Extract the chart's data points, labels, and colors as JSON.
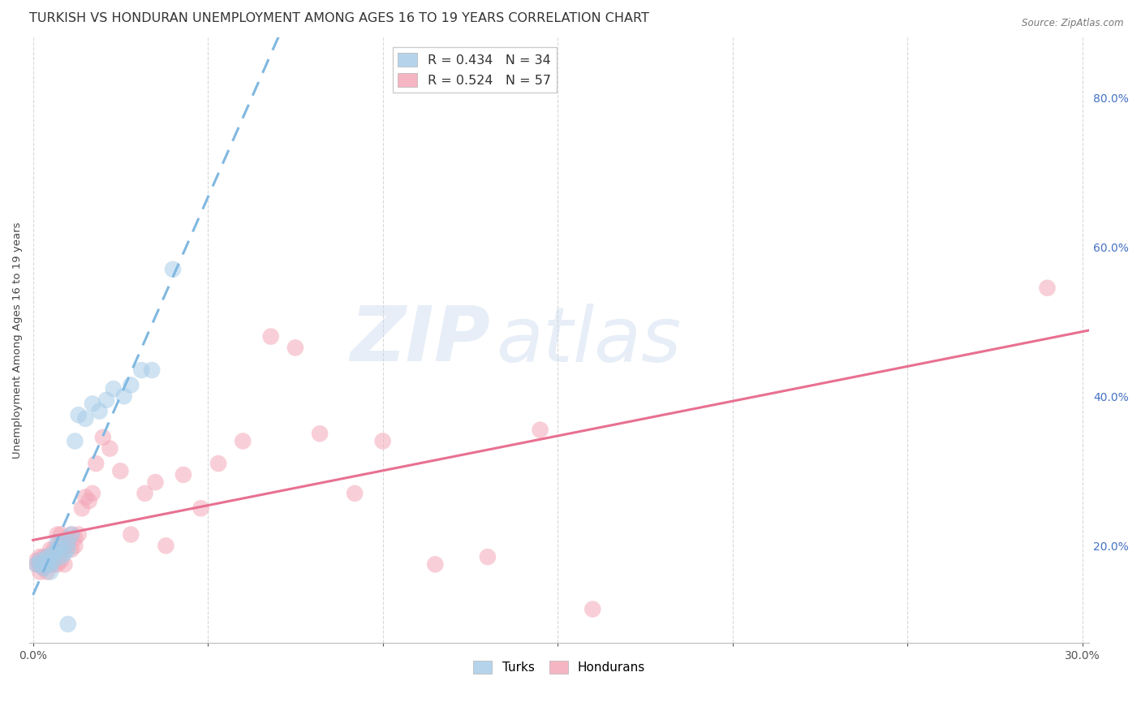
{
  "title": "TURKISH VS HONDURAN UNEMPLOYMENT AMONG AGES 16 TO 19 YEARS CORRELATION CHART",
  "source": "Source: ZipAtlas.com",
  "ylabel": "Unemployment Among Ages 16 to 19 years",
  "xlim_min": -0.001,
  "xlim_max": 0.302,
  "ylim_min": 0.07,
  "ylim_max": 0.88,
  "xticks": [
    0.0,
    0.05,
    0.1,
    0.15,
    0.2,
    0.25,
    0.3
  ],
  "xticklabels": [
    "0.0%",
    "",
    "",
    "",
    "",
    "",
    "30.0%"
  ],
  "yticks_right": [
    0.2,
    0.4,
    0.6,
    0.8
  ],
  "ytick_right_labels": [
    "20.0%",
    "40.0%",
    "60.0%",
    "80.0%"
  ],
  "legend_r1": "R = 0.434",
  "legend_n1": "N = 34",
  "legend_r2": "R = 0.524",
  "legend_n2": "N = 57",
  "turk_color": "#a8cce8",
  "honduran_color": "#f4a8b8",
  "turk_line_color": "#80b8e0",
  "honduran_line_color": "#e87090",
  "watermark_zip": "ZIP",
  "watermark_atlas": "atlas",
  "background_color": "#ffffff",
  "grid_color": "#d8d8d8",
  "title_color": "#333333",
  "right_tick_color": "#4472c4",
  "bottom_tick_color": "#555555",
  "title_fontsize": 11.5,
  "axis_label_fontsize": 9.5,
  "tick_fontsize": 10,
  "marker_size": 220,
  "marker_alpha": 0.55,
  "turks_x": [
    0.001,
    0.002,
    0.002,
    0.003,
    0.003,
    0.004,
    0.004,
    0.004,
    0.005,
    0.005,
    0.005,
    0.006,
    0.006,
    0.007,
    0.007,
    0.008,
    0.008,
    0.009,
    0.01,
    0.01,
    0.011,
    0.012,
    0.013,
    0.015,
    0.017,
    0.019,
    0.021,
    0.023,
    0.026,
    0.028,
    0.031,
    0.034,
    0.04,
    0.01
  ],
  "turks_y": [
    0.175,
    0.175,
    0.18,
    0.17,
    0.175,
    0.175,
    0.18,
    0.185,
    0.165,
    0.175,
    0.185,
    0.19,
    0.18,
    0.195,
    0.205,
    0.185,
    0.2,
    0.19,
    0.195,
    0.205,
    0.215,
    0.34,
    0.375,
    0.37,
    0.39,
    0.38,
    0.395,
    0.41,
    0.4,
    0.415,
    0.435,
    0.435,
    0.57,
    0.095
  ],
  "hondurans_x": [
    0.001,
    0.001,
    0.002,
    0.002,
    0.002,
    0.003,
    0.003,
    0.003,
    0.004,
    0.004,
    0.004,
    0.005,
    0.005,
    0.005,
    0.006,
    0.006,
    0.007,
    0.007,
    0.007,
    0.008,
    0.008,
    0.008,
    0.009,
    0.009,
    0.01,
    0.01,
    0.011,
    0.011,
    0.012,
    0.012,
    0.013,
    0.014,
    0.015,
    0.016,
    0.017,
    0.018,
    0.02,
    0.022,
    0.025,
    0.028,
    0.032,
    0.035,
    0.038,
    0.043,
    0.048,
    0.053,
    0.06,
    0.068,
    0.075,
    0.082,
    0.092,
    0.1,
    0.115,
    0.13,
    0.145,
    0.16,
    0.29
  ],
  "hondurans_y": [
    0.175,
    0.18,
    0.165,
    0.175,
    0.185,
    0.17,
    0.175,
    0.185,
    0.165,
    0.175,
    0.185,
    0.175,
    0.18,
    0.195,
    0.175,
    0.195,
    0.175,
    0.195,
    0.215,
    0.18,
    0.205,
    0.215,
    0.175,
    0.195,
    0.2,
    0.21,
    0.195,
    0.215,
    0.2,
    0.21,
    0.215,
    0.25,
    0.265,
    0.26,
    0.27,
    0.31,
    0.345,
    0.33,
    0.3,
    0.215,
    0.27,
    0.285,
    0.2,
    0.295,
    0.25,
    0.31,
    0.34,
    0.48,
    0.465,
    0.35,
    0.27,
    0.34,
    0.175,
    0.185,
    0.355,
    0.115,
    0.545
  ]
}
